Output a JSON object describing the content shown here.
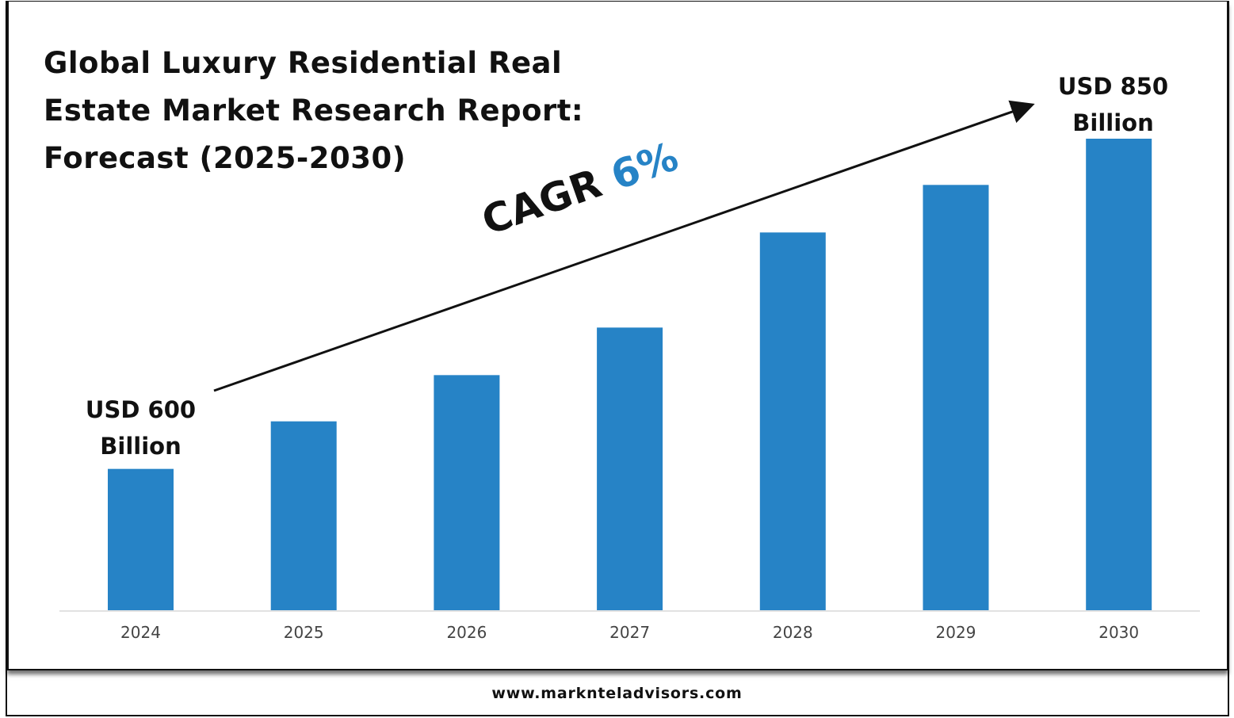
{
  "chart_data": {
    "type": "bar",
    "title": "Global Luxury Residential Real Estate Market Research Report: Forecast (2025-2030)",
    "title_lines": [
      "Global Luxury Residential Real",
      "Estate Market Research Report:",
      "Forecast (2025-2030)"
    ],
    "categories": [
      "2024",
      "2025",
      "2026",
      "2027",
      "2028",
      "2029",
      "2030"
    ],
    "values": [
      600,
      636,
      671,
      707,
      779,
      815,
      850
    ],
    "unit": "USD Billion",
    "xlabel": "",
    "ylabel": "",
    "ylim": [
      493,
      870
    ],
    "grid": false,
    "bar_color": "#2683c6",
    "annotations": {
      "start_label": [
        "USD 600",
        "Billion"
      ],
      "end_label": [
        "USD 850",
        "Billion"
      ],
      "cagr_label": "CAGR",
      "cagr_value": "6%",
      "cagr_color": "#2683c6"
    }
  },
  "footer": "www.marknteladvisors.com"
}
